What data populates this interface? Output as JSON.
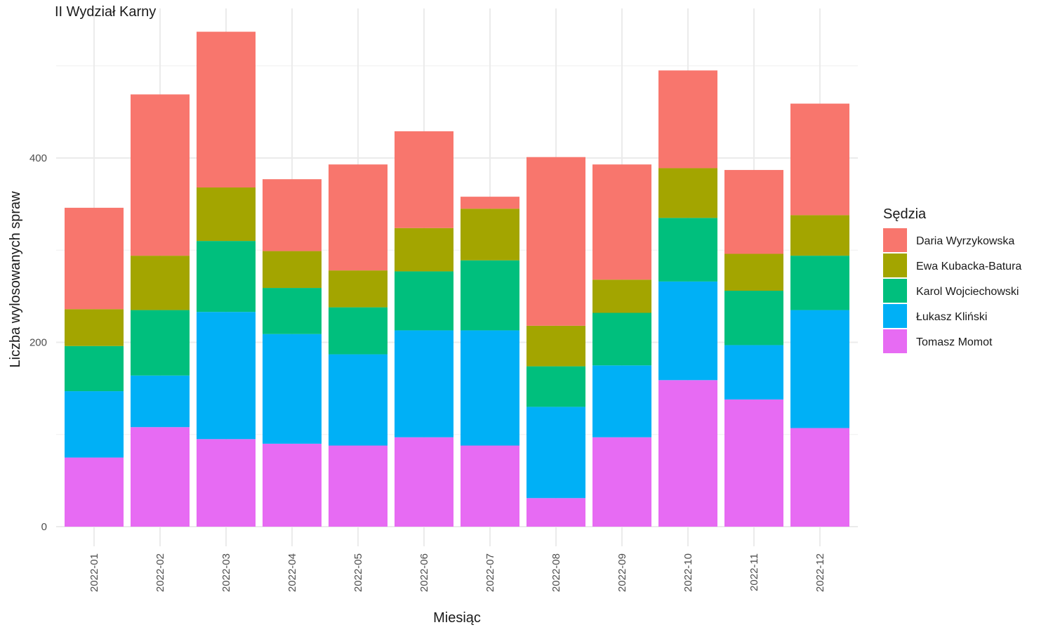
{
  "chart_data": {
    "type": "bar",
    "stacked": true,
    "title": "II Wydział Karny",
    "xlabel": "Miesiąc",
    "ylabel": "Liczba wylosowanych spraw",
    "ylim": [
      0,
      560
    ],
    "yticks": [
      0,
      200,
      400
    ],
    "grid": true,
    "legend_title": "Sędzia",
    "legend_position": "right",
    "categories": [
      "2022-01",
      "2022-02",
      "2022-03",
      "2022-04",
      "2022-05",
      "2022-06",
      "2022-07",
      "2022-08",
      "2022-09",
      "2022-10",
      "2022-11",
      "2022-12"
    ],
    "series": [
      {
        "name": "Tomasz Momot",
        "color": "#E76BF3",
        "values": [
          75,
          108,
          95,
          90,
          88,
          97,
          88,
          31,
          97,
          159,
          138,
          107
        ]
      },
      {
        "name": "Łukasz Kliński",
        "color": "#00B0F6",
        "values": [
          72,
          56,
          138,
          119,
          99,
          116,
          125,
          99,
          78,
          107,
          59,
          128
        ]
      },
      {
        "name": "Karol Wojciechowski",
        "color": "#00BF7D",
        "values": [
          49,
          71,
          77,
          50,
          51,
          64,
          76,
          44,
          57,
          69,
          59,
          59
        ]
      },
      {
        "name": "Ewa Kubacka-Batura",
        "color": "#A3A500",
        "values": [
          40,
          59,
          58,
          40,
          40,
          47,
          56,
          44,
          36,
          54,
          40,
          44
        ]
      },
      {
        "name": "Daria Wyrzykowska",
        "color": "#F8766D",
        "values": [
          110,
          175,
          169,
          78,
          115,
          105,
          13,
          183,
          125,
          106,
          91,
          121
        ]
      }
    ],
    "legend_order": [
      "Daria Wyrzykowska",
      "Ewa Kubacka-Batura",
      "Karol Wojciechowski",
      "Łukasz Kliński",
      "Tomasz Momot"
    ]
  }
}
